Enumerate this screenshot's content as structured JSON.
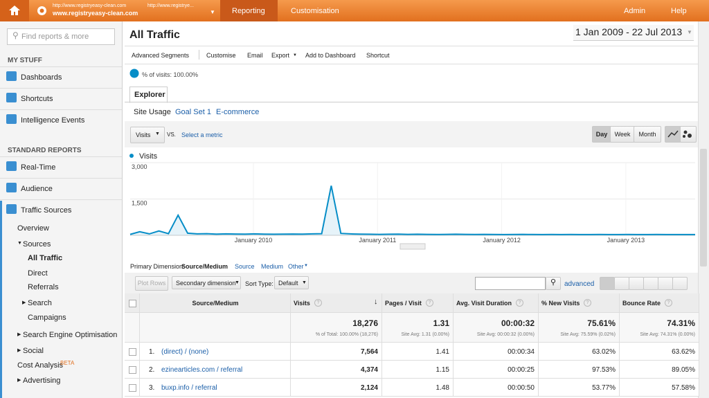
{
  "top": {
    "url1": "http://www.registryeasy-clean.com",
    "url2": "http://www.registrye...",
    "site": "www.registryeasy-clean.com",
    "tabs": [
      "Reporting",
      "Customisation"
    ],
    "right": [
      "Admin",
      "Help"
    ]
  },
  "sidebar": {
    "search": "Find reports & more",
    "my_stuff": "MY STUFF",
    "my_items": [
      "Dashboards",
      "Shortcuts",
      "Intelligence Events"
    ],
    "standard": "STANDARD REPORTS",
    "items": [
      "Real-Time",
      "Audience",
      "Traffic Sources"
    ],
    "sub": [
      "Overview",
      "Sources",
      "All Traffic",
      "Direct",
      "Referrals",
      "Search",
      "Campaigns",
      "Search Engine Optimisation",
      "Social",
      "Cost Analysis",
      "Advertising"
    ],
    "beta": "BETA"
  },
  "main": {
    "title": "All Traffic",
    "date": "1 Jan 2009 - 22 Jul 2013",
    "toolbar": [
      "Advanced Segments",
      "Customise",
      "Email",
      "Export",
      "Add to Dashboard",
      "Shortcut"
    ],
    "segment": "% of visits: 100.00%",
    "tab": "Explorer",
    "subtabs": [
      "Site Usage",
      "Goal Set 1",
      "E-commerce"
    ],
    "metric": "Visits",
    "vs": "VS.",
    "select_metric": "Select a metric",
    "periods": [
      "Day",
      "Week",
      "Month"
    ],
    "chart": {
      "type": "line",
      "series": [
        {
          "name": "Visits",
          "color": "#058dc7",
          "values": [
            40,
            150,
            60,
            180,
            70,
            830,
            90,
            60,
            70,
            50,
            60,
            55,
            50,
            60,
            50,
            45,
            50,
            55,
            50,
            60,
            70,
            2050,
            80,
            60,
            50,
            45,
            40,
            45,
            50,
            40,
            45,
            40,
            35,
            40,
            45,
            40,
            35,
            40,
            35,
            30,
            35,
            40,
            35,
            30,
            35,
            30,
            35,
            30,
            30,
            35,
            30,
            30,
            35,
            30,
            30,
            35,
            30,
            30,
            30,
            30
          ]
        }
      ],
      "ylim": [
        0,
        3000
      ],
      "yticks": [
        {
          "value": 3000,
          "label": "3,000"
        },
        {
          "value": 1500,
          "label": "1,500"
        }
      ],
      "xlabels": [
        "January 2010",
        "January 2011",
        "January 2012",
        "January 2013"
      ],
      "grid": true
    },
    "primary_label": "Primary Dimension:",
    "dims": [
      "Source/Medium",
      "Source",
      "Medium",
      "Other"
    ],
    "plot_rows": "Plot Rows",
    "secondary": "Secondary dimension",
    "sort_label": "Sort Type:",
    "sort": "Default",
    "advanced": "advanced",
    "table": {
      "headers": [
        "Source/Medium",
        "Visits",
        "Pages / Visit",
        "Avg. Visit Duration",
        "% New Visits",
        "Bounce Rate"
      ],
      "totals": [
        "18,276",
        "1.31",
        "00:00:32",
        "75.61%",
        "74.31%"
      ],
      "total_subs": [
        "% of Total: 100.00% (18,276)",
        "Site Avg: 1.31 (0.00%)",
        "Site Avg: 00:00:32 (0.00%)",
        "Site Avg: 75.59% (0.02%)",
        "Site Avg: 74.31% (0.00%)"
      ],
      "rows": [
        [
          "1.",
          "(direct) / (none)",
          "7,564",
          "1.41",
          "00:00:34",
          "63.02%",
          "63.62%"
        ],
        [
          "2.",
          "ezinearticles.com / referral",
          "4,374",
          "1.15",
          "00:00:25",
          "97.53%",
          "89.05%"
        ],
        [
          "3.",
          "buxp.info / referral",
          "2,124",
          "1.48",
          "00:00:50",
          "53.77%",
          "57.58%"
        ]
      ]
    }
  }
}
